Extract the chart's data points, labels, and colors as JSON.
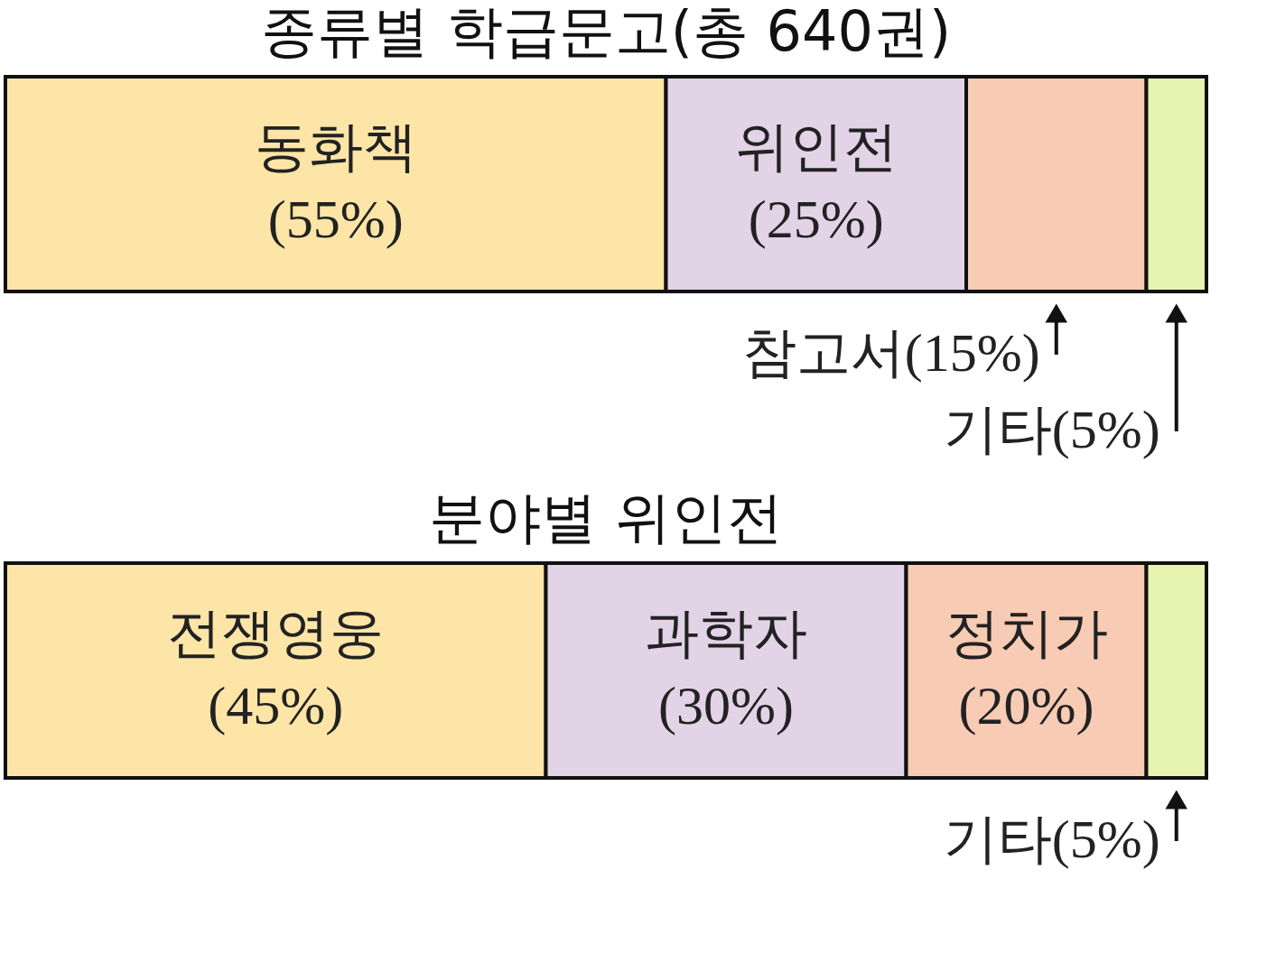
{
  "chart_data": [
    {
      "type": "bar",
      "title": "종류별 학급문고(총 640권)",
      "orientation": "horizontal",
      "stacked": true,
      "categories": [
        null
      ],
      "xlim": [
        0,
        100
      ],
      "tick_labels": false,
      "series": [
        {
          "name": "동화책",
          "color": "#fce5a6",
          "values": [
            55
          ],
          "value_labels": [
            "(55%)"
          ]
        },
        {
          "name": "위인전",
          "color": "#e2d3e6",
          "values": [
            25
          ],
          "value_labels": [
            "(25%)"
          ]
        },
        {
          "name": "참고서",
          "color": "#f8cbb4",
          "values": [
            15
          ],
          "value_labels": [
            "(15%)"
          ]
        },
        {
          "name": "기타",
          "color": "#e6f4b0",
          "values": [
            5
          ],
          "value_labels": [
            "(5%)"
          ]
        }
      ]
    },
    {
      "type": "bar",
      "title": "분야별 위인전",
      "orientation": "horizontal",
      "stacked": true,
      "categories": [
        null
      ],
      "xlim": [
        0,
        100
      ],
      "tick_labels": false,
      "series": [
        {
          "name": "전쟁영웅",
          "color": "#fce5a6",
          "values": [
            45
          ],
          "value_labels": [
            "(45%)"
          ]
        },
        {
          "name": "과학자",
          "color": "#e2d3e6",
          "values": [
            30
          ],
          "value_labels": [
            "(30%)"
          ]
        },
        {
          "name": "정치가",
          "color": "#f8cbb4",
          "values": [
            20
          ],
          "value_labels": [
            "(20%)"
          ]
        },
        {
          "name": "기타",
          "color": "#e6f4b0",
          "values": [
            5
          ],
          "value_labels": [
            "(5%)"
          ]
        }
      ]
    }
  ]
}
